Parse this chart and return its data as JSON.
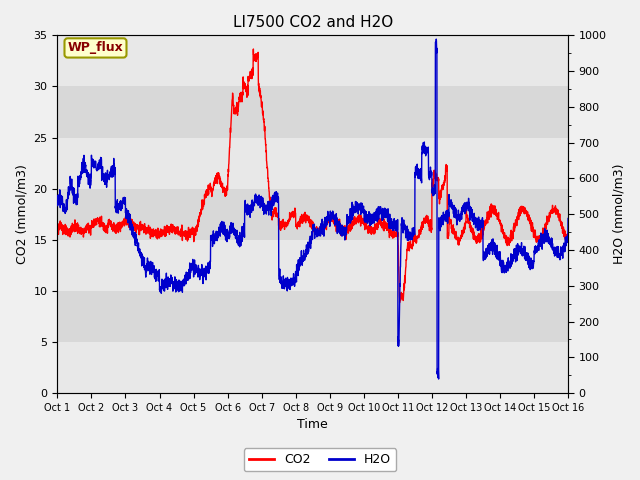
{
  "title": "LI7500 CO2 and H2O",
  "xlabel": "Time",
  "ylabel_left": "CO2 (mmol/m3)",
  "ylabel_right": "H2O (mmol/m3)",
  "annotation": "WP_flux",
  "xlim": [
    0,
    15
  ],
  "ylim_left": [
    0,
    35
  ],
  "ylim_right": [
    0,
    1000
  ],
  "yticks_left": [
    0,
    5,
    10,
    15,
    20,
    25,
    30,
    35
  ],
  "yticks_right": [
    0,
    100,
    200,
    300,
    400,
    500,
    600,
    700,
    800,
    900,
    1000
  ],
  "band_colors": [
    "#e8e8e8",
    "#d8d8d8"
  ],
  "band_edges_left": [
    0,
    5,
    10,
    15,
    20,
    25,
    30,
    35
  ],
  "xtick_labels": [
    "Oct 1",
    "Oct 2",
    "Oct 3",
    "Oct 4",
    "Oct 5",
    "Oct 6",
    "Oct 7",
    "Oct 8",
    "Oct 9",
    "Oct 10",
    "Oct 11",
    "Oct 12",
    "Oct 13",
    "Oct 14",
    "Oct 15",
    "Oct 16"
  ],
  "co2_color": "#ff0000",
  "h2o_color": "#0000cc",
  "bg_color": "#f0f0f0",
  "plot_bg": "#e0e0e0",
  "annotation_bg": "#ffffcc",
  "annotation_border": "#999900",
  "annotation_text_color": "#880000",
  "grid_color": "#ffffff",
  "linewidth": 1.0,
  "title_fontsize": 11,
  "label_fontsize": 9,
  "tick_fontsize": 8,
  "legend_fontsize": 9
}
